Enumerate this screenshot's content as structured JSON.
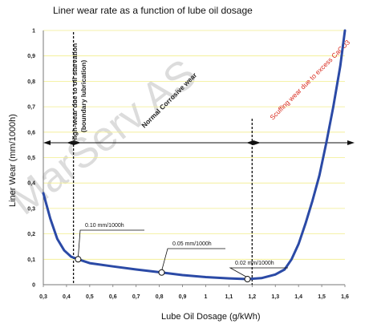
{
  "chart_data": {
    "type": "line",
    "title": "Liner wear rate as a function of lube oil dosage",
    "xlabel": "Lube Oil Dosage (g/kWh)",
    "ylabel": "Liner Wear (mm/1000h)",
    "xlim": [
      0.3,
      1.6
    ],
    "ylim": [
      0,
      1
    ],
    "x_ticks": [
      "0,3",
      "0,4",
      "0,5",
      "0,6",
      "0,7",
      "0,8",
      "0,9",
      "1",
      "1,1",
      "1,2",
      "1,3",
      "1,4",
      "1,5",
      "1,6"
    ],
    "y_ticks": [
      "0",
      "0,1",
      "0,2",
      "0,3",
      "0,4",
      "0,5",
      "0,6",
      "0,7",
      "0,8",
      "0,9",
      "1"
    ],
    "grid": true,
    "watermark": "MarServ AS",
    "series": [
      {
        "color": "#2b4aa6",
        "x": [
          0.3,
          0.33,
          0.36,
          0.39,
          0.42,
          0.45,
          0.5,
          0.6,
          0.7,
          0.81,
          0.9,
          1.0,
          1.1,
          1.18,
          1.24,
          1.3,
          1.34,
          1.37,
          1.4,
          1.43,
          1.46,
          1.49,
          1.52,
          1.55,
          1.58,
          1.6
        ],
        "y": [
          0.36,
          0.26,
          0.18,
          0.135,
          0.11,
          0.1,
          0.085,
          0.072,
          0.06,
          0.048,
          0.038,
          0.03,
          0.025,
          0.022,
          0.026,
          0.04,
          0.06,
          0.1,
          0.16,
          0.24,
          0.33,
          0.43,
          0.56,
          0.7,
          0.86,
          1.0
        ]
      }
    ],
    "points": [
      {
        "x": 0.45,
        "y": 0.1,
        "label": "0.10 mm/1000h"
      },
      {
        "x": 0.81,
        "y": 0.048,
        "label": "0.05 mm/1000h"
      },
      {
        "x": 1.18,
        "y": 0.022,
        "label": "0.02 mm/1000h"
      }
    ],
    "vlines": [
      0.43,
      1.2
    ],
    "regions": [
      {
        "label": "High-wear due to oil starvation",
        "label2": "(boundary lubrication)"
      },
      {
        "label": "Normal Corrosive wear"
      },
      {
        "label": "Scuffing wear due to excess CaCO3",
        "color": "#d8281c"
      }
    ]
  }
}
